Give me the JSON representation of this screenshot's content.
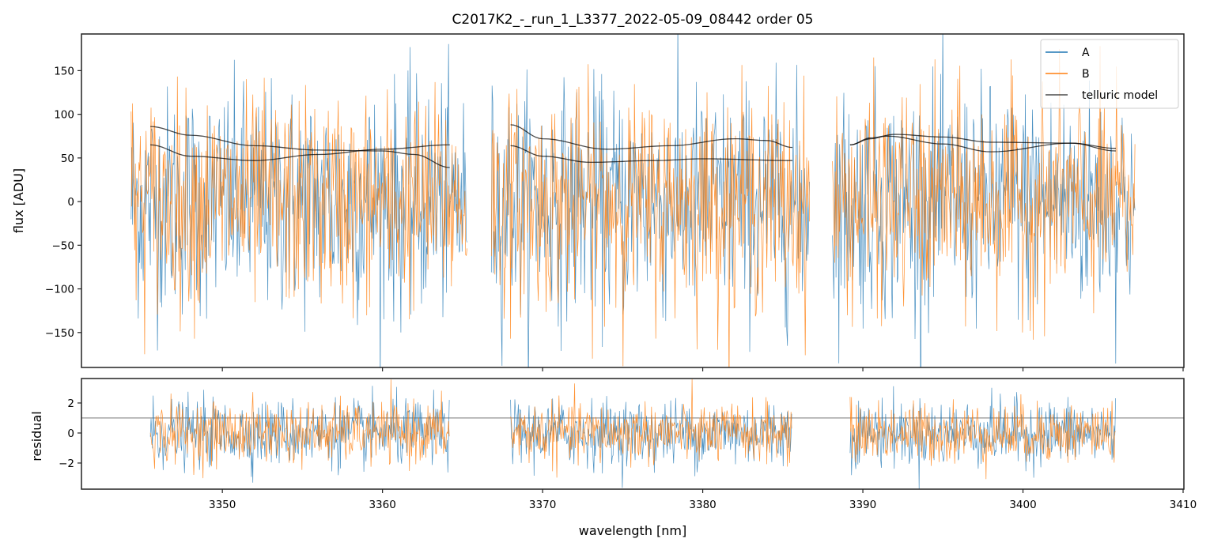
{
  "chart_data": [
    {
      "type": "line",
      "title": "C2017K2_-_run_1_L3377_2022-05-09_08442  order 05",
      "xlabel": "",
      "ylabel": "flux [ADU]",
      "xlim": [
        3341.2,
        3410.05
      ],
      "ylim": [
        -190,
        192
      ],
      "yticks": [
        150,
        100,
        50,
        0,
        -50,
        -100,
        -150
      ],
      "ytick_labels": [
        "150",
        "100",
        "50",
        "0",
        "−50",
        "−100",
        "−150"
      ],
      "xticks": [
        3350,
        3360,
        3370,
        3380,
        3390,
        3400,
        3410
      ],
      "legend": {
        "placement": "top-right",
        "entries": [
          "A",
          "B",
          "telluric model"
        ]
      },
      "colors": {
        "A": "#1f77b4",
        "B": "#ff7f0e",
        "model": "#000000"
      },
      "segments": [
        [
          3344.3,
          3365.3
        ],
        [
          3366.8,
          3386.7
        ],
        [
          3388.1,
          3407.0
        ]
      ],
      "noise_sigma": {
        "A": 65,
        "B": 60
      },
      "telluric_model": [
        {
          "x": [
            3345.5,
            3348,
            3352,
            3356,
            3360,
            3362,
            3364.2
          ],
          "y": [
            86,
            76,
            64,
            59,
            58,
            54,
            39
          ]
        },
        {
          "x": [
            3345.5,
            3348,
            3352,
            3356,
            3360,
            3364.2
          ],
          "y": [
            65,
            52,
            47,
            54,
            60,
            65
          ]
        },
        {
          "x": [
            3368,
            3370,
            3374,
            3378,
            3382,
            3384,
            3385.6
          ],
          "y": [
            88,
            72,
            60,
            64,
            72,
            70,
            62
          ]
        },
        {
          "x": [
            3368,
            3370,
            3373,
            3377,
            3380,
            3385.6
          ],
          "y": [
            64,
            52,
            45,
            47,
            49,
            47
          ]
        },
        {
          "x": [
            3389.2,
            3390.5,
            3392,
            3395,
            3398,
            3403,
            3405.8
          ],
          "y": [
            65,
            73,
            77,
            74,
            68,
            67,
            61
          ]
        },
        {
          "x": [
            3389.2,
            3390.5,
            3391.5,
            3395,
            3398,
            3403,
            3405.8
          ],
          "y": [
            65,
            72,
            75,
            66,
            57,
            67,
            58
          ]
        }
      ]
    },
    {
      "type": "line",
      "xlabel": "wavelength [nm]",
      "ylabel": "residual",
      "xlim": [
        3341.2,
        3410.05
      ],
      "ylim": [
        -3.74,
        3.63
      ],
      "yticks": [
        2,
        0,
        -2
      ],
      "ytick_labels": [
        "2",
        "0",
        "−2"
      ],
      "xticks": [
        3350,
        3360,
        3370,
        3380,
        3390,
        3400,
        3410
      ],
      "xtick_labels": [
        "3350",
        "3360",
        "3370",
        "3380",
        "3390",
        "3400",
        "3410"
      ],
      "segments": [
        [
          3345.5,
          3364.2
        ],
        [
          3368.0,
          3385.6
        ],
        [
          3389.2,
          3405.8
        ]
      ],
      "noise_sigma": {
        "A": 1.1,
        "B": 1.0
      },
      "reference_line": 1
    }
  ]
}
